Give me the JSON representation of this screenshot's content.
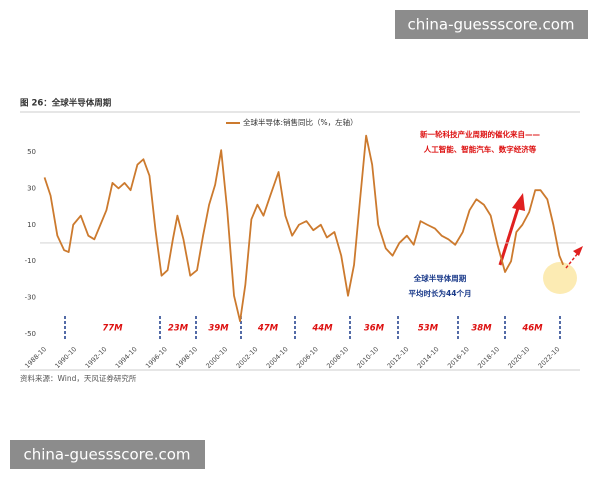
{
  "watermark_top": "china-guessscore.com",
  "watermark_bottom": "china-guessscore.com",
  "figure_title": "图 26：全球半导体周期",
  "source": "资料来源：Wind，天风证券研究所",
  "chart_data": {
    "type": "line",
    "x": [
      1988.9,
      1989.3,
      1989.75,
      1990.2,
      1990.5,
      1990.8,
      1991.3,
      1991.8,
      1992.2,
      1992.6,
      1993.0,
      1993.4,
      1993.8,
      1994.2,
      1994.6,
      1995.05,
      1995.45,
      1995.85,
      1996.25,
      1996.65,
      1997.05,
      1997.4,
      1997.7,
      1998.1,
      1998.55,
      1999.0,
      1999.4,
      1999.8,
      2000.2,
      2000.6,
      2001.0,
      2001.45,
      2001.85,
      2002.2,
      2002.6,
      2003.0,
      2003.4,
      2003.85,
      2004.4,
      2004.85,
      2005.3,
      2005.75,
      2006.25,
      2006.7,
      2007.2,
      2007.6,
      2008.1,
      2008.55,
      2009.0,
      2009.4,
      2009.8,
      2010.2,
      2010.6,
      2011.0,
      2011.5,
      2011.95,
      2012.4,
      2012.9,
      2013.35,
      2013.8,
      2014.25,
      2014.75,
      2015.2,
      2015.65,
      2016.1,
      2016.6,
      2017.05,
      2017.5,
      2018.0,
      2018.45,
      2018.9,
      2019.4,
      2019.8,
      2020.15,
      2020.55,
      2021.0,
      2021.4,
      2021.75,
      2022.2,
      2022.6,
      2023.0,
      2023.25
    ],
    "series": [
      {
        "name": "全球半导体:销售同比（%，左轴）",
        "color": "#cc7a2e",
        "values": [
          36,
          26,
          4,
          -4,
          -5,
          10,
          15,
          4,
          2,
          10,
          18,
          33,
          30,
          33,
          29,
          43,
          46,
          37,
          7,
          -18,
          -15,
          2,
          15,
          2,
          -18,
          -15,
          4,
          21,
          32,
          51,
          18,
          -29,
          -43,
          -23,
          13,
          21,
          15,
          26,
          39,
          15,
          4,
          10,
          12,
          7,
          10,
          3,
          6,
          -7,
          -29,
          -12,
          24,
          59,
          43,
          10,
          -3,
          -7,
          0,
          4,
          -1,
          12,
          10,
          8,
          4,
          2,
          -1,
          6,
          18,
          24,
          21,
          15,
          -1,
          -16,
          -10,
          6,
          10,
          17,
          29,
          29,
          24,
          10,
          -7,
          -12
        ]
      }
    ],
    "xlim": [
      1988.6,
      2024.1
    ],
    "ylim": [
      -55,
      65
    ],
    "yticks": [
      50,
      30,
      10,
      -10,
      -30,
      -50
    ],
    "xticks": [
      {
        "value": 1988.75,
        "label": "1988-10"
      },
      {
        "value": 1990.75,
        "label": "1990-10"
      },
      {
        "value": 1992.75,
        "label": "1992-10"
      },
      {
        "value": 1994.75,
        "label": "1994-10"
      },
      {
        "value": 1996.75,
        "label": "1996-10"
      },
      {
        "value": 1998.75,
        "label": "1998-10"
      },
      {
        "value": 2000.75,
        "label": "2000-10"
      },
      {
        "value": 2002.75,
        "label": "2002-10"
      },
      {
        "value": 2004.75,
        "label": "2004-10"
      },
      {
        "value": 2006.75,
        "label": "2006-10"
      },
      {
        "value": 2008.75,
        "label": "2008-10"
      },
      {
        "value": 2010.75,
        "label": "2010-10"
      },
      {
        "value": 2012.75,
        "label": "2012-10"
      },
      {
        "value": 2014.75,
        "label": "2014-10"
      },
      {
        "value": 2016.75,
        "label": "2016-10"
      },
      {
        "value": 2018.75,
        "label": "2018-10"
      },
      {
        "value": 2020.75,
        "label": "2020-10"
      },
      {
        "value": 2022.75,
        "label": "2022-10"
      }
    ],
    "annotations": [
      "新一轮科技产业周期的催化来自——",
      "人工智能、智能汽车、数字经济等",
      "全球半导体周期",
      "平均时长为44个月"
    ],
    "cycle_labels": [
      "77M",
      "23M",
      "39M",
      "47M",
      "44M",
      "36M",
      "53M",
      "38M",
      "46M"
    ]
  }
}
